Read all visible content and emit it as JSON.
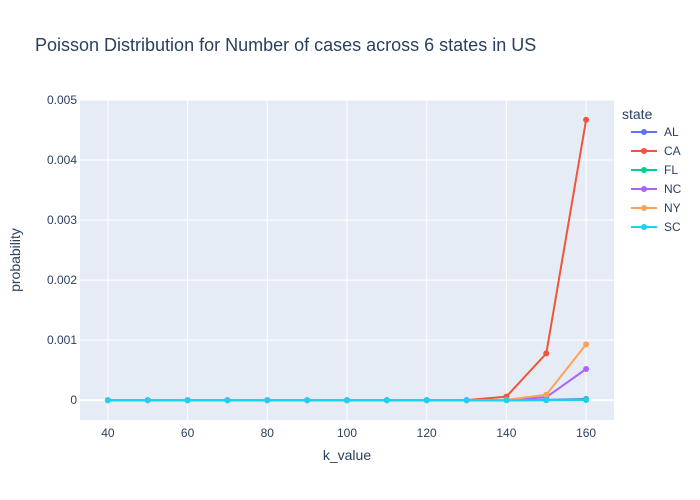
{
  "chart_data": {
    "type": "line",
    "title": "Poisson Distribution for Number of cases across 6 states in US",
    "xlabel": "k_value",
    "ylabel": "probability",
    "x": [
      40,
      50,
      60,
      70,
      80,
      90,
      100,
      110,
      120,
      130,
      140,
      150,
      160
    ],
    "xlim": [
      33,
      167
    ],
    "ylim": [
      -0.00033,
      0.005
    ],
    "xticks": [
      40,
      60,
      80,
      100,
      120,
      140,
      160
    ],
    "xtick_labels": [
      "40",
      "60",
      "80",
      "100",
      "120",
      "140",
      "160"
    ],
    "yticks": [
      0,
      0.001,
      0.002,
      0.003,
      0.004,
      0.005
    ],
    "ytick_labels": [
      "0",
      "0.001",
      "0.002",
      "0.003",
      "0.004",
      "0.005"
    ],
    "legend_title": "state",
    "legend_position": "right",
    "grid": true,
    "series": [
      {
        "name": "AL",
        "color": "#636efa",
        "values": [
          0,
          0,
          0,
          0,
          0,
          0,
          0,
          0,
          0,
          0,
          5e-07,
          4e-06,
          2e-05
        ]
      },
      {
        "name": "CA",
        "color": "#ef553b",
        "values": [
          0,
          0,
          0,
          0,
          0,
          0,
          0,
          0,
          0,
          2e-06,
          6e-05,
          0.00078,
          0.00467
        ]
      },
      {
        "name": "FL",
        "color": "#00cc96",
        "values": [
          0,
          0,
          0,
          0,
          0,
          0,
          0,
          0,
          0,
          0,
          2e-07,
          2e-06,
          1e-05
        ]
      },
      {
        "name": "NC",
        "color": "#ab63fa",
        "values": [
          0,
          0,
          0,
          0,
          0,
          0,
          0,
          0,
          0,
          0,
          4e-06,
          5e-05,
          0.00052
        ]
      },
      {
        "name": "NY",
        "color": "#ffa15a",
        "values": [
          0,
          0,
          0,
          0,
          0,
          0,
          0,
          0,
          0,
          0,
          6e-06,
          9e-05,
          0.00093
        ]
      },
      {
        "name": "SC",
        "color": "#19d3f3",
        "values": [
          0,
          0,
          0,
          0,
          0,
          0,
          0,
          0,
          0,
          0,
          0,
          5e-07,
          3e-06
        ]
      }
    ]
  }
}
